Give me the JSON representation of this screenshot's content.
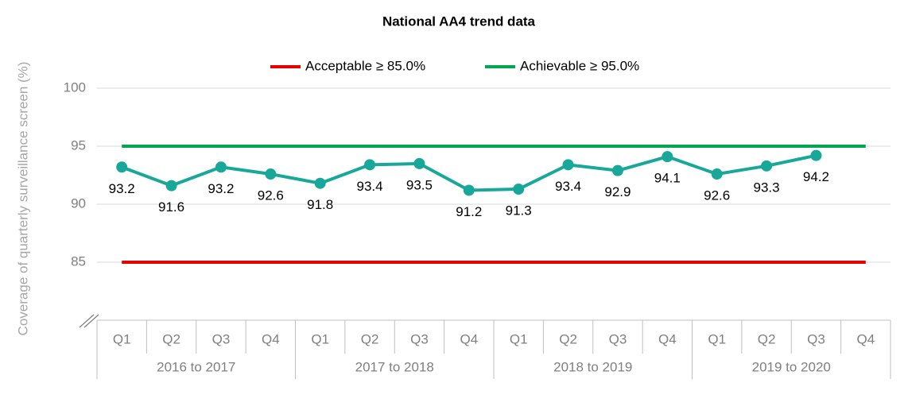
{
  "chart_data": {
    "type": "line",
    "title": "National AA4 trend data",
    "y_label": "Coverage of quarterly surveillance screen (%)",
    "categories": [
      "Q1",
      "Q2",
      "Q3",
      "Q4",
      "Q1",
      "Q2",
      "Q3",
      "Q4",
      "Q1",
      "Q2",
      "Q3",
      "Q4",
      "Q1",
      "Q2",
      "Q3",
      "Q4"
    ],
    "groups": [
      "2016 to 2017",
      "2017 to 2018",
      "2018 to 2019",
      "2019 to 2020"
    ],
    "values": [
      93.2,
      91.6,
      93.2,
      92.6,
      91.8,
      93.4,
      93.5,
      91.2,
      91.3,
      93.4,
      92.9,
      94.1,
      92.6,
      93.3,
      94.2,
      null
    ],
    "color": "#17a899",
    "series": [
      {
        "name": "Acceptable ≥ 85.0%",
        "color": "#e60000",
        "values": [
          85,
          85,
          85,
          85,
          85,
          85,
          85,
          85,
          85,
          85,
          85,
          85,
          85,
          85,
          85,
          85
        ]
      },
      {
        "name": "Achievable ≥ 95.0%",
        "color": "#00a650",
        "values": [
          95,
          95,
          95,
          95,
          95,
          95,
          95,
          95,
          95,
          95,
          95,
          95,
          95,
          95,
          95,
          95
        ]
      }
    ],
    "ylim": [
      80,
      100
    ],
    "yticks": [
      85,
      90,
      95,
      100
    ],
    "grid": true,
    "legend": "top"
  }
}
